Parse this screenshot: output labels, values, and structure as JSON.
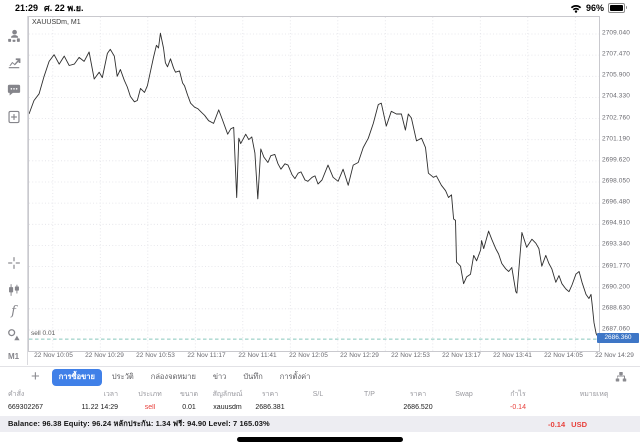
{
  "status_bar": {
    "time": "21:29",
    "date": "ศ. 22 พ.ย.",
    "battery_percent": "96%"
  },
  "sidebar": {
    "timeframe_label": "M1",
    "indicators_glyph": "f"
  },
  "chart": {
    "symbol_label": "XAUUSDm, M1",
    "open_position_label": "sell 0.01",
    "current_price_label": "2686.360"
  },
  "chart_data": {
    "type": "line",
    "title": "XAUUSDm, M1",
    "symbol": "XAUUSDm",
    "timeframe": "M1",
    "grid": "dotted",
    "x_unit": "minutes since 22 Nov 10:00",
    "x_range": [
      0,
      272
    ],
    "x_ticks": [
      "22 Nov 10:05",
      "22 Nov 10:29",
      "22 Nov 10:53",
      "22 Nov 11:17",
      "22 Nov 11:41",
      "22 Nov 12:05",
      "22 Nov 12:29",
      "22 Nov 12:53",
      "22 Nov 13:17",
      "22 Nov 13:41",
      "22 Nov 14:05",
      "22 Nov 14:29"
    ],
    "y_range": [
      2685.5,
      2710.3
    ],
    "y_ticks": [
      "2709.040",
      "2707.470",
      "2705.900",
      "2704.330",
      "2702.760",
      "2701.190",
      "2699.620",
      "2698.050",
      "2696.480",
      "2694.910",
      "2693.340",
      "2691.770",
      "2690.200",
      "2688.630",
      "2687.060"
    ],
    "open_position_line": {
      "price": 2686.381,
      "label": "sell 0.01",
      "side": "sell",
      "volume": 0.01
    },
    "current_price": 2686.36,
    "series": [
      {
        "name": "XAUUSDm M1",
        "points": [
          [
            0,
            2703.1
          ],
          [
            2.4,
            2704.1
          ],
          [
            4.8,
            2704.6
          ],
          [
            7.2,
            2705.9
          ],
          [
            9.6,
            2707
          ],
          [
            12,
            2707.5
          ],
          [
            14.4,
            2706.8
          ],
          [
            16.8,
            2707.4
          ],
          [
            19.2,
            2706.7
          ],
          [
            21.6,
            2706.8
          ],
          [
            23.9,
            2707.3
          ],
          [
            26.3,
            2707
          ],
          [
            28.7,
            2707.7
          ],
          [
            31.1,
            2705.7
          ],
          [
            33.5,
            2706.2
          ],
          [
            35,
            2705.8
          ],
          [
            37.4,
            2707.6
          ],
          [
            38.8,
            2707.9
          ],
          [
            40.7,
            2707.4
          ],
          [
            42.1,
            2705.9
          ],
          [
            43.6,
            2706.4
          ],
          [
            45.5,
            2705.6
          ],
          [
            46.9,
            2705.1
          ],
          [
            48.4,
            2704.4
          ],
          [
            50.3,
            2704
          ],
          [
            51.7,
            2704.1
          ],
          [
            53.2,
            2705
          ],
          [
            55.1,
            2704.7
          ],
          [
            56.5,
            2705.2
          ],
          [
            57.9,
            2706.2
          ],
          [
            59.4,
            2707.3
          ],
          [
            60.8,
            2708.2
          ],
          [
            61.8,
            2708
          ],
          [
            62.7,
            2709.1
          ],
          [
            64.2,
            2708
          ],
          [
            65.1,
            2706.9
          ],
          [
            66.1,
            2706.6
          ],
          [
            67.5,
            2707.2
          ],
          [
            69,
            2706.5
          ],
          [
            69.9,
            2706.2
          ],
          [
            71.8,
            2706.3
          ],
          [
            73.3,
            2705.4
          ],
          [
            74.2,
            2705.2
          ],
          [
            75.7,
            2704.5
          ],
          [
            77.1,
            2703.9
          ],
          [
            79,
            2703.6
          ],
          [
            80.5,
            2703.5
          ],
          [
            82.4,
            2703.2
          ],
          [
            83.8,
            2703
          ],
          [
            85.7,
            2702.6
          ],
          [
            88.1,
            2702.4
          ],
          [
            90.5,
            2703.4
          ],
          [
            92,
            2702.8
          ],
          [
            94.8,
            2701.6
          ],
          [
            96.3,
            2702
          ],
          [
            97.7,
            2702.1
          ],
          [
            99.1,
            2696.9
          ],
          [
            100.1,
            2701.3
          ],
          [
            101,
            2700.9
          ],
          [
            103.4,
            2701.6
          ],
          [
            104.9,
            2701.2
          ],
          [
            106.3,
            2701.4
          ],
          [
            107.8,
            2700.2
          ],
          [
            109.2,
            2696.8
          ],
          [
            110.6,
            2700.5
          ],
          [
            112.1,
            2699.9
          ],
          [
            114,
            2699.5
          ],
          [
            115.4,
            2700
          ],
          [
            117.3,
            2700.1
          ],
          [
            118.8,
            2699.4
          ],
          [
            120.2,
            2699
          ],
          [
            122.1,
            2699.4
          ],
          [
            123.6,
            2699.3
          ],
          [
            125.5,
            2698.6
          ],
          [
            126.9,
            2698.3
          ],
          [
            128.4,
            2698.7
          ],
          [
            129.8,
            2698.8
          ],
          [
            131.7,
            2698.2
          ],
          [
            133.1,
            2698.1
          ],
          [
            135.1,
            2698.4
          ],
          [
            136.5,
            2698.5
          ],
          [
            137.9,
            2697.9
          ],
          [
            139.8,
            2698.2
          ],
          [
            142.7,
            2699.3
          ],
          [
            145.1,
            2698.4
          ],
          [
            147.5,
            2698.1
          ],
          [
            149.9,
            2699
          ],
          [
            152.3,
            2697.8
          ],
          [
            154.7,
            2699.3
          ],
          [
            157.1,
            2699.5
          ],
          [
            159.5,
            2700.6
          ],
          [
            161.9,
            2701.3
          ],
          [
            164.3,
            2702.4
          ],
          [
            166.7,
            2703.8
          ],
          [
            168.1,
            2703.9
          ],
          [
            170.5,
            2702.2
          ],
          [
            172.9,
            2703.3
          ],
          [
            175.3,
            2703.1
          ],
          [
            177.7,
            2703.1
          ],
          [
            179.6,
            2701.9
          ],
          [
            181,
            2703.1
          ],
          [
            182.5,
            2702.8
          ],
          [
            184.9,
            2701.1
          ],
          [
            187.3,
            2701.3
          ],
          [
            189.2,
            2700.6
          ],
          [
            190.6,
            2698.7
          ],
          [
            193,
            2698.4
          ],
          [
            194.4,
            2698.5
          ],
          [
            196.8,
            2697.8
          ],
          [
            198.8,
            2697.4
          ],
          [
            200.2,
            2696.9
          ],
          [
            201.6,
            2697.1
          ],
          [
            202.6,
            2695.3
          ],
          [
            203.5,
            2695.2
          ],
          [
            204,
            2692.1
          ],
          [
            205.9,
            2691.8
          ],
          [
            207.4,
            2690.5
          ],
          [
            208.8,
            2691
          ],
          [
            210.7,
            2691.2
          ],
          [
            212.2,
            2692.6
          ],
          [
            213.6,
            2692.2
          ],
          [
            215.5,
            2693
          ],
          [
            216,
            2693.7
          ],
          [
            217,
            2693.1
          ],
          [
            219.3,
            2694.4
          ],
          [
            220.8,
            2693.8
          ],
          [
            222.7,
            2693.1
          ],
          [
            224.1,
            2692.7
          ],
          [
            225.6,
            2692
          ],
          [
            227.5,
            2691.6
          ],
          [
            228.9,
            2691.4
          ],
          [
            230.4,
            2691.7
          ],
          [
            232.3,
            2689.9
          ],
          [
            232.8,
            2689.8
          ],
          [
            235.2,
            2694.3
          ],
          [
            237.5,
            2693.2
          ],
          [
            240,
            2693.8
          ],
          [
            241.9,
            2693.5
          ],
          [
            243.3,
            2693.1
          ],
          [
            244.7,
            2691.8
          ],
          [
            246.6,
            2692.6
          ],
          [
            248.1,
            2692
          ],
          [
            249.5,
            2691.6
          ],
          [
            251.4,
            2690.6
          ],
          [
            252.9,
            2691.1
          ],
          [
            254.3,
            2690.5
          ],
          [
            256.2,
            2690.1
          ],
          [
            257.7,
            2689.9
          ],
          [
            259.1,
            2690.4
          ],
          [
            261,
            2691.2
          ],
          [
            262.5,
            2691.4
          ],
          [
            263.9,
            2690.6
          ],
          [
            265.8,
            2689.7
          ],
          [
            267.2,
            2689.4
          ],
          [
            268.2,
            2689.7
          ],
          [
            268.7,
            2689
          ],
          [
            269.6,
            2687.6
          ],
          [
            270.6,
            2686.8
          ],
          [
            272,
            2686.4
          ]
        ]
      }
    ]
  },
  "toolbar": {
    "add_label": "+",
    "tabs": [
      {
        "label": "การซื้อขาย",
        "active": true
      },
      {
        "label": "ประวัติ",
        "active": false
      },
      {
        "label": "กล่องจดหมาย",
        "active": false
      },
      {
        "label": "ข่าว",
        "active": false
      },
      {
        "label": "บันทึก",
        "active": false
      },
      {
        "label": "การตั้งค่า",
        "active": false
      }
    ]
  },
  "table": {
    "columns": [
      {
        "key": "order",
        "label": "คำสั่ง",
        "width": 60,
        "align": "left"
      },
      {
        "key": "time",
        "label": "เวลา",
        "width": 70,
        "align": "right"
      },
      {
        "key": "type",
        "label": "ประเภท",
        "width": 40,
        "align": "center"
      },
      {
        "key": "volume",
        "label": "ขนาด",
        "width": 38,
        "align": "center"
      },
      {
        "key": "symbol",
        "label": "สัญลักษณ์",
        "width": 39,
        "align": "center"
      },
      {
        "key": "open_price",
        "label": "ราคา",
        "width": 46,
        "align": "center"
      },
      {
        "key": "sl",
        "label": "S/L",
        "width": 50,
        "align": "center"
      },
      {
        "key": "tp",
        "label": "T/P",
        "width": 53,
        "align": "center"
      },
      {
        "key": "price",
        "label": "ราคา",
        "width": 44,
        "align": "center"
      },
      {
        "key": "swap",
        "label": "Swap",
        "width": 48,
        "align": "center"
      },
      {
        "key": "profit",
        "label": "กำไร",
        "width": 60,
        "align": "center"
      },
      {
        "key": "comment",
        "label": "หมายเหตุ",
        "width": 92,
        "align": "center"
      }
    ],
    "red_columns": [
      2,
      10
    ],
    "rows": [
      [
        "669302267",
        "11.22 14:29",
        "sell",
        "0.01",
        "xauusdm",
        "2686.381",
        "",
        "",
        "2686.520",
        "",
        "-0.14",
        ""
      ]
    ]
  },
  "footer": {
    "balance_text": "Balance: 96.38 Equity: 96.24 หลักประกัน: 1.34 ฟรี: 94.90 Level: 7 165.03%",
    "profit": "-0.14",
    "currency": "USD"
  },
  "colors": {
    "tab_active_blue": "#4080e8",
    "price_tag_blue": "#3e76c6",
    "negative_red": "#e8413c",
    "sell_line_teal": "#86c7bc",
    "grid": "#e1e1e7",
    "price_line": "#2f2f2f"
  }
}
